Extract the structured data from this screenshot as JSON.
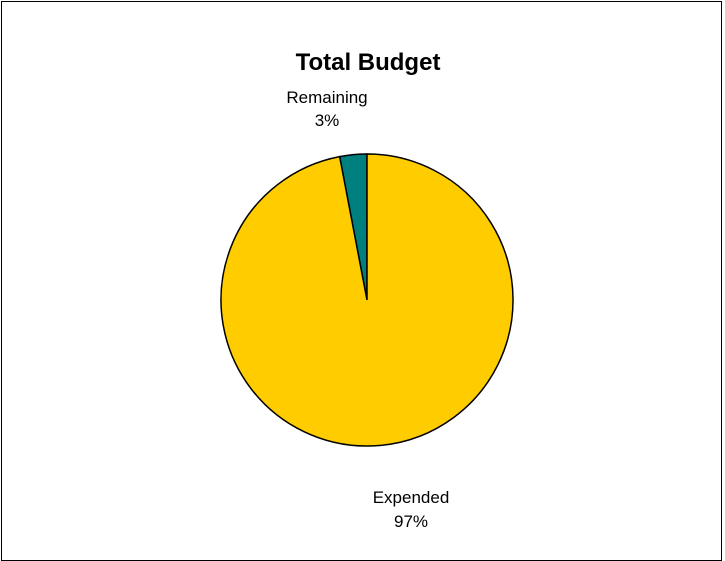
{
  "chart_data": {
    "type": "pie",
    "title": "Total Budget",
    "slices": [
      {
        "label": "Remaining",
        "value": 3,
        "display": "3%",
        "color": "#007F7F"
      },
      {
        "label": "Expended",
        "value": 97,
        "display": "97%",
        "color": "#FFCC00"
      }
    ],
    "start_angle": "12 o'clock",
    "direction": "counter-clockwise",
    "legend": "none"
  }
}
